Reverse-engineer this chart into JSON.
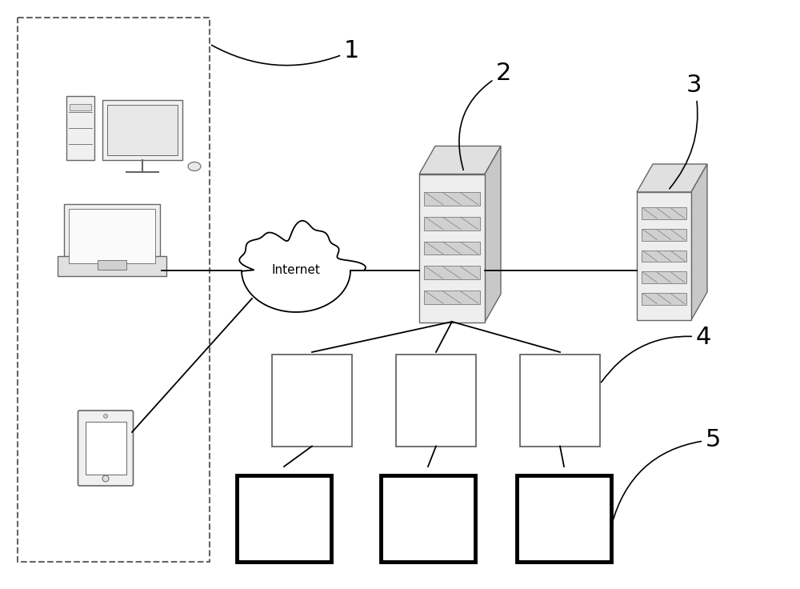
{
  "bg_color": "#ffffff",
  "label_1": "1",
  "label_2": "2",
  "label_3": "3",
  "label_4": "4",
  "label_5": "5",
  "internet_label": "Internet",
  "gray": "#666666",
  "black": "#000000",
  "light_gray": "#d8d8d8",
  "mid_gray": "#bbbbbb"
}
